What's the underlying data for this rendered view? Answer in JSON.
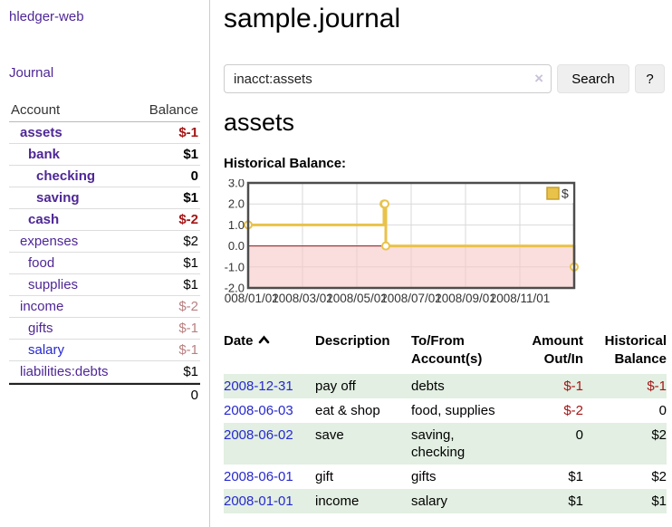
{
  "app": {
    "title": "hledger-web"
  },
  "sidebar": {
    "journal_link": "Journal",
    "accounts": {
      "col_account": "Account",
      "col_balance": "Balance",
      "rows": [
        {
          "name": "assets",
          "indent": 0,
          "bold": true,
          "link_color": "purple",
          "balance": "$-1",
          "balance_style": "neg-strong"
        },
        {
          "name": "bank",
          "indent": 1,
          "bold": true,
          "link_color": "purple",
          "balance": "$1",
          "balance_style": "normal"
        },
        {
          "name": "checking",
          "indent": 2,
          "bold": true,
          "link_color": "purple",
          "balance": "0",
          "balance_style": "normal"
        },
        {
          "name": "saving",
          "indent": 2,
          "bold": true,
          "link_color": "purple",
          "balance": "$1",
          "balance_style": "normal"
        },
        {
          "name": "cash",
          "indent": 1,
          "bold": true,
          "link_color": "purple",
          "balance": "$-2",
          "balance_style": "neg-strong"
        },
        {
          "name": "expenses",
          "indent": 0,
          "bold": false,
          "link_color": "purple",
          "balance": "$2",
          "balance_style": "normal"
        },
        {
          "name": "food",
          "indent": 1,
          "bold": false,
          "link_color": "purple",
          "balance": "$1",
          "balance_style": "normal"
        },
        {
          "name": "supplies",
          "indent": 1,
          "bold": false,
          "link_color": "purple",
          "balance": "$1",
          "balance_style": "normal"
        },
        {
          "name": "income",
          "indent": 0,
          "bold": false,
          "link_color": "purple",
          "balance": "$-2",
          "balance_style": "neg-soft"
        },
        {
          "name": "gifts",
          "indent": 1,
          "bold": false,
          "link_color": "purple",
          "balance": "$-1",
          "balance_style": "neg-soft"
        },
        {
          "name": "salary",
          "indent": 1,
          "bold": false,
          "link_color": "blue",
          "balance": "$-1",
          "balance_style": "neg-soft"
        },
        {
          "name": "liabilities:debts",
          "indent": 0,
          "bold": false,
          "link_color": "purple",
          "balance": "$1",
          "balance_style": "normal"
        }
      ],
      "total": "0"
    }
  },
  "main": {
    "title": "sample.journal",
    "search": {
      "value": "inacct:assets",
      "clear_icon": "×",
      "search_button": "Search",
      "help_button": "?"
    },
    "account_heading": "assets"
  },
  "chart_data": {
    "type": "line",
    "step": true,
    "title": "Historical Balance:",
    "legend": {
      "label": "$",
      "position": "top-right"
    },
    "ylim": [
      -2,
      3
    ],
    "yticks": [
      "3.0",
      "2.0",
      "1.0",
      "0.0",
      "-1.0",
      "-2.0"
    ],
    "ytick_values": [
      3,
      2,
      1,
      0,
      -1,
      -2
    ],
    "xticks": [
      "2008/01/01",
      "2008/03/01",
      "2008/05/01",
      "2008/07/01",
      "2008/09/01",
      "2008/11/01"
    ],
    "xtick_months": [
      0,
      2,
      4,
      6,
      8,
      10
    ],
    "x_domain_months": [
      0,
      12
    ],
    "points": [
      {
        "date": "2008-01-01",
        "value": 1
      },
      {
        "date": "2008-06-01",
        "value": 2
      },
      {
        "date": "2008-06-02",
        "value": 2
      },
      {
        "date": "2008-06-03",
        "value": 0
      },
      {
        "date": "2008-12-31",
        "value": -1
      }
    ],
    "colors": {
      "line": "#e9c24a",
      "marker_fill": "#ffffff",
      "legend_fill": "#e9c24a",
      "legend_border": "#c79f2e",
      "negative_area": "rgba(246,198,198,0.6)",
      "zero_line": "#8b1a1a",
      "grid": "#d9d9d9",
      "border": "#4d4d4d",
      "tick_text": "#333333"
    }
  },
  "register": {
    "headers": {
      "date": "Date",
      "description": "Description",
      "accounts": "To/From Account(s)",
      "amount": "Amount Out/In",
      "balance": "Historical Balance"
    },
    "sort_icon": "chevron-up",
    "rows": [
      {
        "date": "2008-12-31",
        "description": "pay off",
        "accounts": "debts",
        "amount": "$-1",
        "amount_neg": true,
        "balance": "$-1",
        "balance_neg": true,
        "green": true
      },
      {
        "date": "2008-06-03",
        "description": "eat & shop",
        "accounts": "food, supplies",
        "amount": "$-2",
        "amount_neg": true,
        "balance": "0",
        "balance_neg": false,
        "green": false
      },
      {
        "date": "2008-06-02",
        "description": "save",
        "accounts": "saving, checking",
        "amount": "0",
        "amount_neg": false,
        "balance": "$2",
        "balance_neg": false,
        "green": true
      },
      {
        "date": "2008-06-01",
        "description": "gift",
        "accounts": "gifts",
        "amount": "$1",
        "amount_neg": false,
        "balance": "$2",
        "balance_neg": false,
        "green": false
      },
      {
        "date": "2008-01-01",
        "description": "income",
        "accounts": "salary",
        "amount": "$1",
        "amount_neg": false,
        "balance": "$1",
        "balance_neg": false,
        "green": true
      }
    ]
  },
  "colors": {
    "purple_link": "#4e2796",
    "blue_link": "#2628cf",
    "negative_strong": "#a41616",
    "negative_soft": "#b98080",
    "row_green": "#e2efe2"
  }
}
